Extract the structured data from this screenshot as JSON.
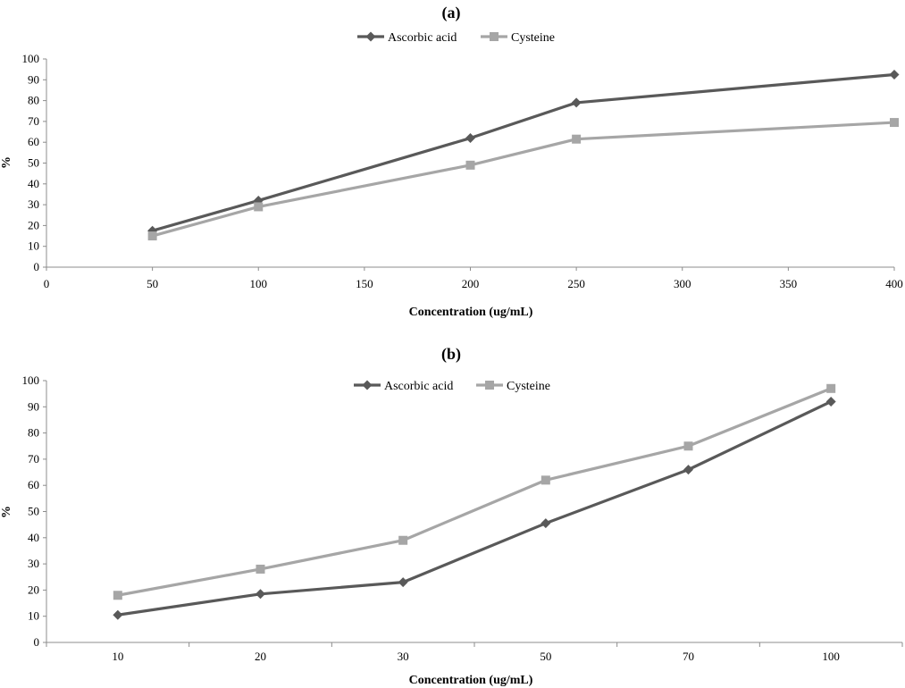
{
  "chart_data": [
    {
      "type": "line",
      "title": "(a)",
      "xlabel": "Concentration (ug/mL)",
      "ylabel": "%",
      "xlim": [
        0,
        400
      ],
      "ylim": [
        0,
        100
      ],
      "xticks": [
        0,
        50,
        100,
        150,
        200,
        250,
        300,
        350,
        400
      ],
      "yticks": [
        0,
        10,
        20,
        30,
        40,
        50,
        60,
        70,
        80,
        90,
        100
      ],
      "legend": "top-center",
      "grid": false,
      "series": [
        {
          "name": "Ascorbic acid",
          "color": "#595959",
          "marker": "diamond",
          "x": [
            50,
            100,
            200,
            250,
            400
          ],
          "values": [
            17.5,
            32,
            62,
            79,
            92.5
          ]
        },
        {
          "name": "Cysteine",
          "color": "#a6a6a6",
          "marker": "square",
          "x": [
            50,
            100,
            200,
            250,
            400
          ],
          "values": [
            15,
            29,
            49,
            61.5,
            69.5
          ]
        }
      ]
    },
    {
      "type": "line",
      "title": "(b)",
      "xlabel": "Concentration (ug/mL)",
      "ylabel": "%",
      "categories": [
        "10",
        "20",
        "30",
        "50",
        "70",
        "100"
      ],
      "ylim": [
        0,
        100
      ],
      "yticks": [
        0,
        10,
        20,
        30,
        40,
        50,
        60,
        70,
        80,
        90,
        100
      ],
      "legend": "top-center",
      "grid": false,
      "series": [
        {
          "name": "Ascorbic acid",
          "color": "#595959",
          "marker": "diamond",
          "values": [
            10.5,
            18.5,
            23,
            45.5,
            66,
            92
          ]
        },
        {
          "name": "Cysteine",
          "color": "#a6a6a6",
          "marker": "square",
          "values": [
            18,
            28,
            39,
            62,
            75,
            97
          ]
        }
      ]
    }
  ]
}
